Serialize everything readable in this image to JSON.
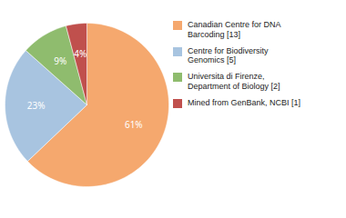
{
  "chart_data": {
    "type": "pie",
    "categories": [
      "Canadian Centre for DNA\nBarcoding [13]",
      "Centre for Biodiversity\nGenomics [5]",
      "Universita di Firenze,\nDepartment of Biology [2]",
      "Mined from GenBank, NCBI [1]"
    ],
    "values": [
      61,
      23,
      9,
      4
    ],
    "value_labels": [
      "61%",
      "23%",
      "9%",
      "4%"
    ],
    "colors": [
      "#f5a86e",
      "#a8c4e0",
      "#8fbc6e",
      "#c0504d"
    ],
    "data_labels": true,
    "legend": "right"
  }
}
